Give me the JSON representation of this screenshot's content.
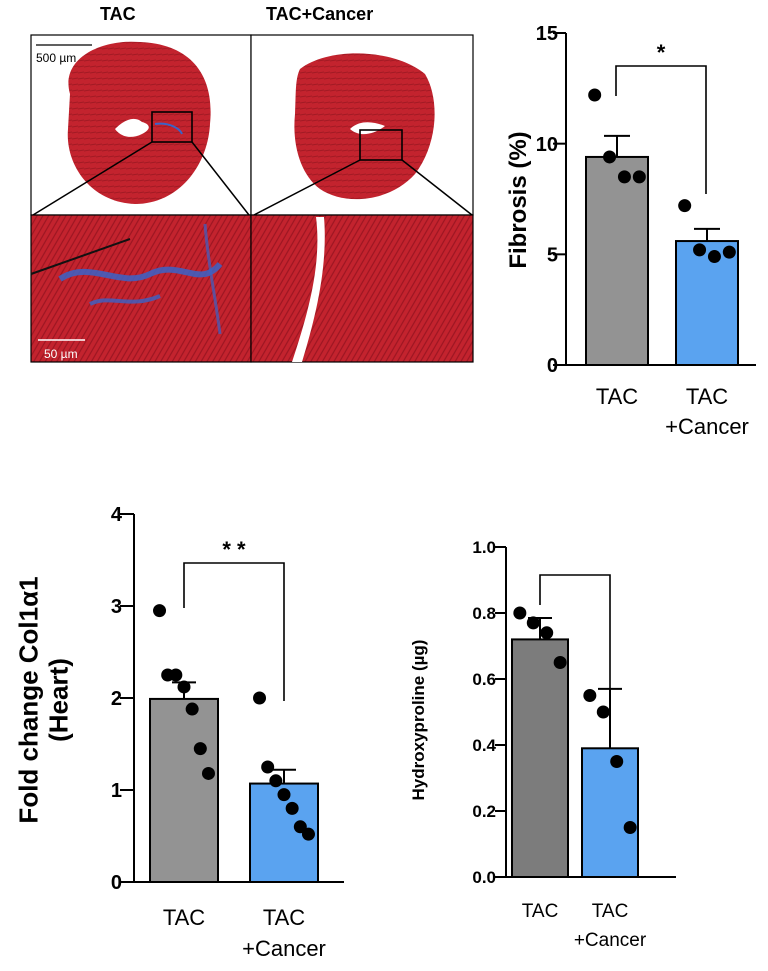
{
  "histology": {
    "label_left": "TAC",
    "label_right": "TAC+Cancer",
    "scalebar_top": "500 µm",
    "scalebar_bottom": "50 µm",
    "colors": {
      "tissue": "#c3232e",
      "tissue_dark": "#a11a24",
      "fibrosis": "#3a63c8",
      "background": "#ffffff"
    }
  },
  "chart_data": [
    {
      "type": "bar",
      "ylabel": "Fibrosis (%)",
      "xlabel": "",
      "categories": [
        "TAC",
        "TAC\n+Cancer"
      ],
      "values": [
        9.4,
        5.6
      ],
      "errors": [
        0.95,
        0.55
      ],
      "points": [
        [
          12.2,
          9.4,
          8.5,
          8.5
        ],
        [
          7.2,
          5.2,
          4.9,
          5.1
        ]
      ],
      "ylim": [
        0,
        15
      ],
      "yticks": [
        0,
        5,
        10,
        15
      ],
      "significance": "*",
      "colors": [
        "#939393",
        "#5aa3f0"
      ]
    },
    {
      "type": "bar",
      "ylabel": "Fold change Col1α1\n(Heart)",
      "xlabel": "",
      "categories": [
        "TAC",
        "TAC\n+Cancer"
      ],
      "values": [
        1.99,
        1.07
      ],
      "errors": [
        0.18,
        0.15
      ],
      "points": [
        [
          2.95,
          2.25,
          2.25,
          2.12,
          1.88,
          1.45,
          1.18
        ],
        [
          2.0,
          1.25,
          1.1,
          0.95,
          0.8,
          0.6,
          0.52
        ]
      ],
      "ylim": [
        0,
        4
      ],
      "yticks": [
        0,
        1,
        2,
        3,
        4
      ],
      "significance": "* *",
      "colors": [
        "#939393",
        "#5aa3f0"
      ]
    },
    {
      "type": "bar",
      "ylabel": "Hydroxyproline (µg)",
      "xlabel": "",
      "categories": [
        "TAC",
        "TAC\n+Cancer"
      ],
      "values": [
        0.72,
        0.39
      ],
      "errors": [
        0.065,
        0.18
      ],
      "points": [
        [
          0.8,
          0.77,
          0.74,
          0.65
        ],
        [
          0.55,
          0.5,
          0.35,
          0.15
        ]
      ],
      "ylim": [
        0,
        1.0
      ],
      "yticks": [
        "0.0",
        "0.2",
        "0.4",
        "0.6",
        "0.8",
        "1.0"
      ],
      "significance": "",
      "colors": [
        "#7c7c7c",
        "#5aa3f0"
      ]
    }
  ]
}
